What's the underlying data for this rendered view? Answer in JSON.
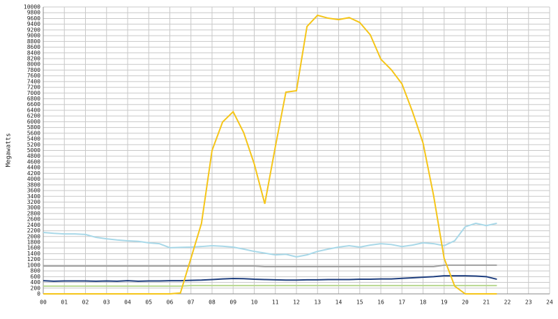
{
  "chart_data": {
    "type": "line",
    "y_label": "Megawatts",
    "x": [
      0,
      0.5,
      1,
      1.5,
      2,
      2.5,
      3,
      3.5,
      4,
      4.5,
      5,
      5.5,
      6,
      6.5,
      7,
      7.5,
      8,
      8.5,
      9,
      9.5,
      10,
      10.5,
      11,
      11.5,
      12,
      12.5,
      13,
      13.5,
      14,
      14.5,
      15,
      15.5,
      16,
      16.5,
      17,
      17.5,
      18,
      18.5,
      19,
      19.5,
      20,
      20.5,
      21,
      21.5
    ],
    "series": [
      {
        "color": "#a8d8e8",
        "values": [
          2140,
          2110,
          2090,
          2090,
          2070,
          1970,
          1920,
          1880,
          1850,
          1830,
          1780,
          1750,
          1610,
          1620,
          1630,
          1650,
          1680,
          1660,
          1630,
          1560,
          1480,
          1420,
          1360,
          1380,
          1290,
          1360,
          1480,
          1560,
          1630,
          1680,
          1630,
          1700,
          1750,
          1720,
          1650,
          1700,
          1780,
          1750,
          1680,
          1850,
          2340,
          2460,
          2380,
          2460
        ]
      },
      {
        "color": "#a0a0a0",
        "values": [
          970,
          970,
          970,
          970,
          970,
          970,
          970,
          970,
          970,
          970,
          970,
          970,
          970,
          970,
          970,
          970,
          970,
          970,
          970,
          970,
          970,
          950,
          950,
          950,
          950,
          950,
          950,
          950,
          950,
          950,
          950,
          950,
          950,
          950,
          950,
          950,
          950,
          950,
          1000,
          1000,
          1000,
          1000,
          1000,
          1000
        ]
      },
      {
        "color": "#b8d890",
        "values": [
          270,
          270,
          270,
          270,
          270,
          270,
          270,
          270,
          270,
          270,
          270,
          270,
          270,
          270,
          290,
          290,
          290,
          290,
          290,
          290,
          290,
          290,
          290,
          290,
          290,
          290,
          290,
          290,
          290,
          290,
          290,
          290,
          290,
          290,
          290,
          290,
          290,
          290,
          290,
          290,
          290,
          290,
          290,
          290
        ]
      },
      {
        "color": "#1f3f7f",
        "values": [
          460,
          440,
          450,
          450,
          450,
          440,
          450,
          440,
          460,
          440,
          450,
          450,
          460,
          460,
          470,
          480,
          500,
          520,
          535,
          530,
          510,
          500,
          490,
          480,
          480,
          490,
          490,
          500,
          500,
          500,
          510,
          510,
          520,
          520,
          540,
          560,
          580,
          600,
          630,
          630,
          630,
          620,
          600,
          510
        ]
      },
      {
        "color": "#f5c518",
        "values": [
          0,
          0,
          0,
          0,
          0,
          0,
          0,
          0,
          0,
          0,
          0,
          0,
          0,
          30,
          1240,
          2460,
          5000,
          5990,
          6350,
          5620,
          4530,
          3140,
          5130,
          7030,
          7080,
          9320,
          9710,
          9610,
          9560,
          9630,
          9460,
          9030,
          8180,
          7810,
          7320,
          6350,
          5260,
          3430,
          1240,
          270,
          0,
          0,
          0,
          0
        ]
      }
    ],
    "xlim": [
      0,
      24
    ],
    "xticks": [
      {
        "value": 0,
        "label": "00"
      },
      {
        "value": 1,
        "label": "01"
      },
      {
        "value": 2,
        "label": "02"
      },
      {
        "value": 3,
        "label": "03"
      },
      {
        "value": 4,
        "label": "04"
      },
      {
        "value": 5,
        "label": "05"
      },
      {
        "value": 6,
        "label": "06"
      },
      {
        "value": 7,
        "label": "07"
      },
      {
        "value": 8,
        "label": "08"
      },
      {
        "value": 9,
        "label": "09"
      },
      10,
      11,
      12,
      13,
      14,
      15,
      16,
      17,
      18,
      19,
      20,
      21,
      22,
      23,
      24
    ],
    "ylim": [
      0,
      10000
    ],
    "yticks": [
      0,
      200,
      400,
      600,
      800,
      1000,
      1200,
      1400,
      1600,
      1800,
      2000,
      2200,
      2400,
      2600,
      2800,
      3000,
      3200,
      3400,
      3600,
      3800,
      4000,
      4200,
      4400,
      4600,
      4800,
      5000,
      5200,
      5400,
      5600,
      5800,
      6000,
      6200,
      6400,
      6600,
      6800,
      7000,
      7200,
      7400,
      7600,
      7800,
      8000,
      8200,
      8400,
      8600,
      8800,
      9000,
      9200,
      9400,
      9600,
      9800,
      10000
    ],
    "grid": true
  }
}
